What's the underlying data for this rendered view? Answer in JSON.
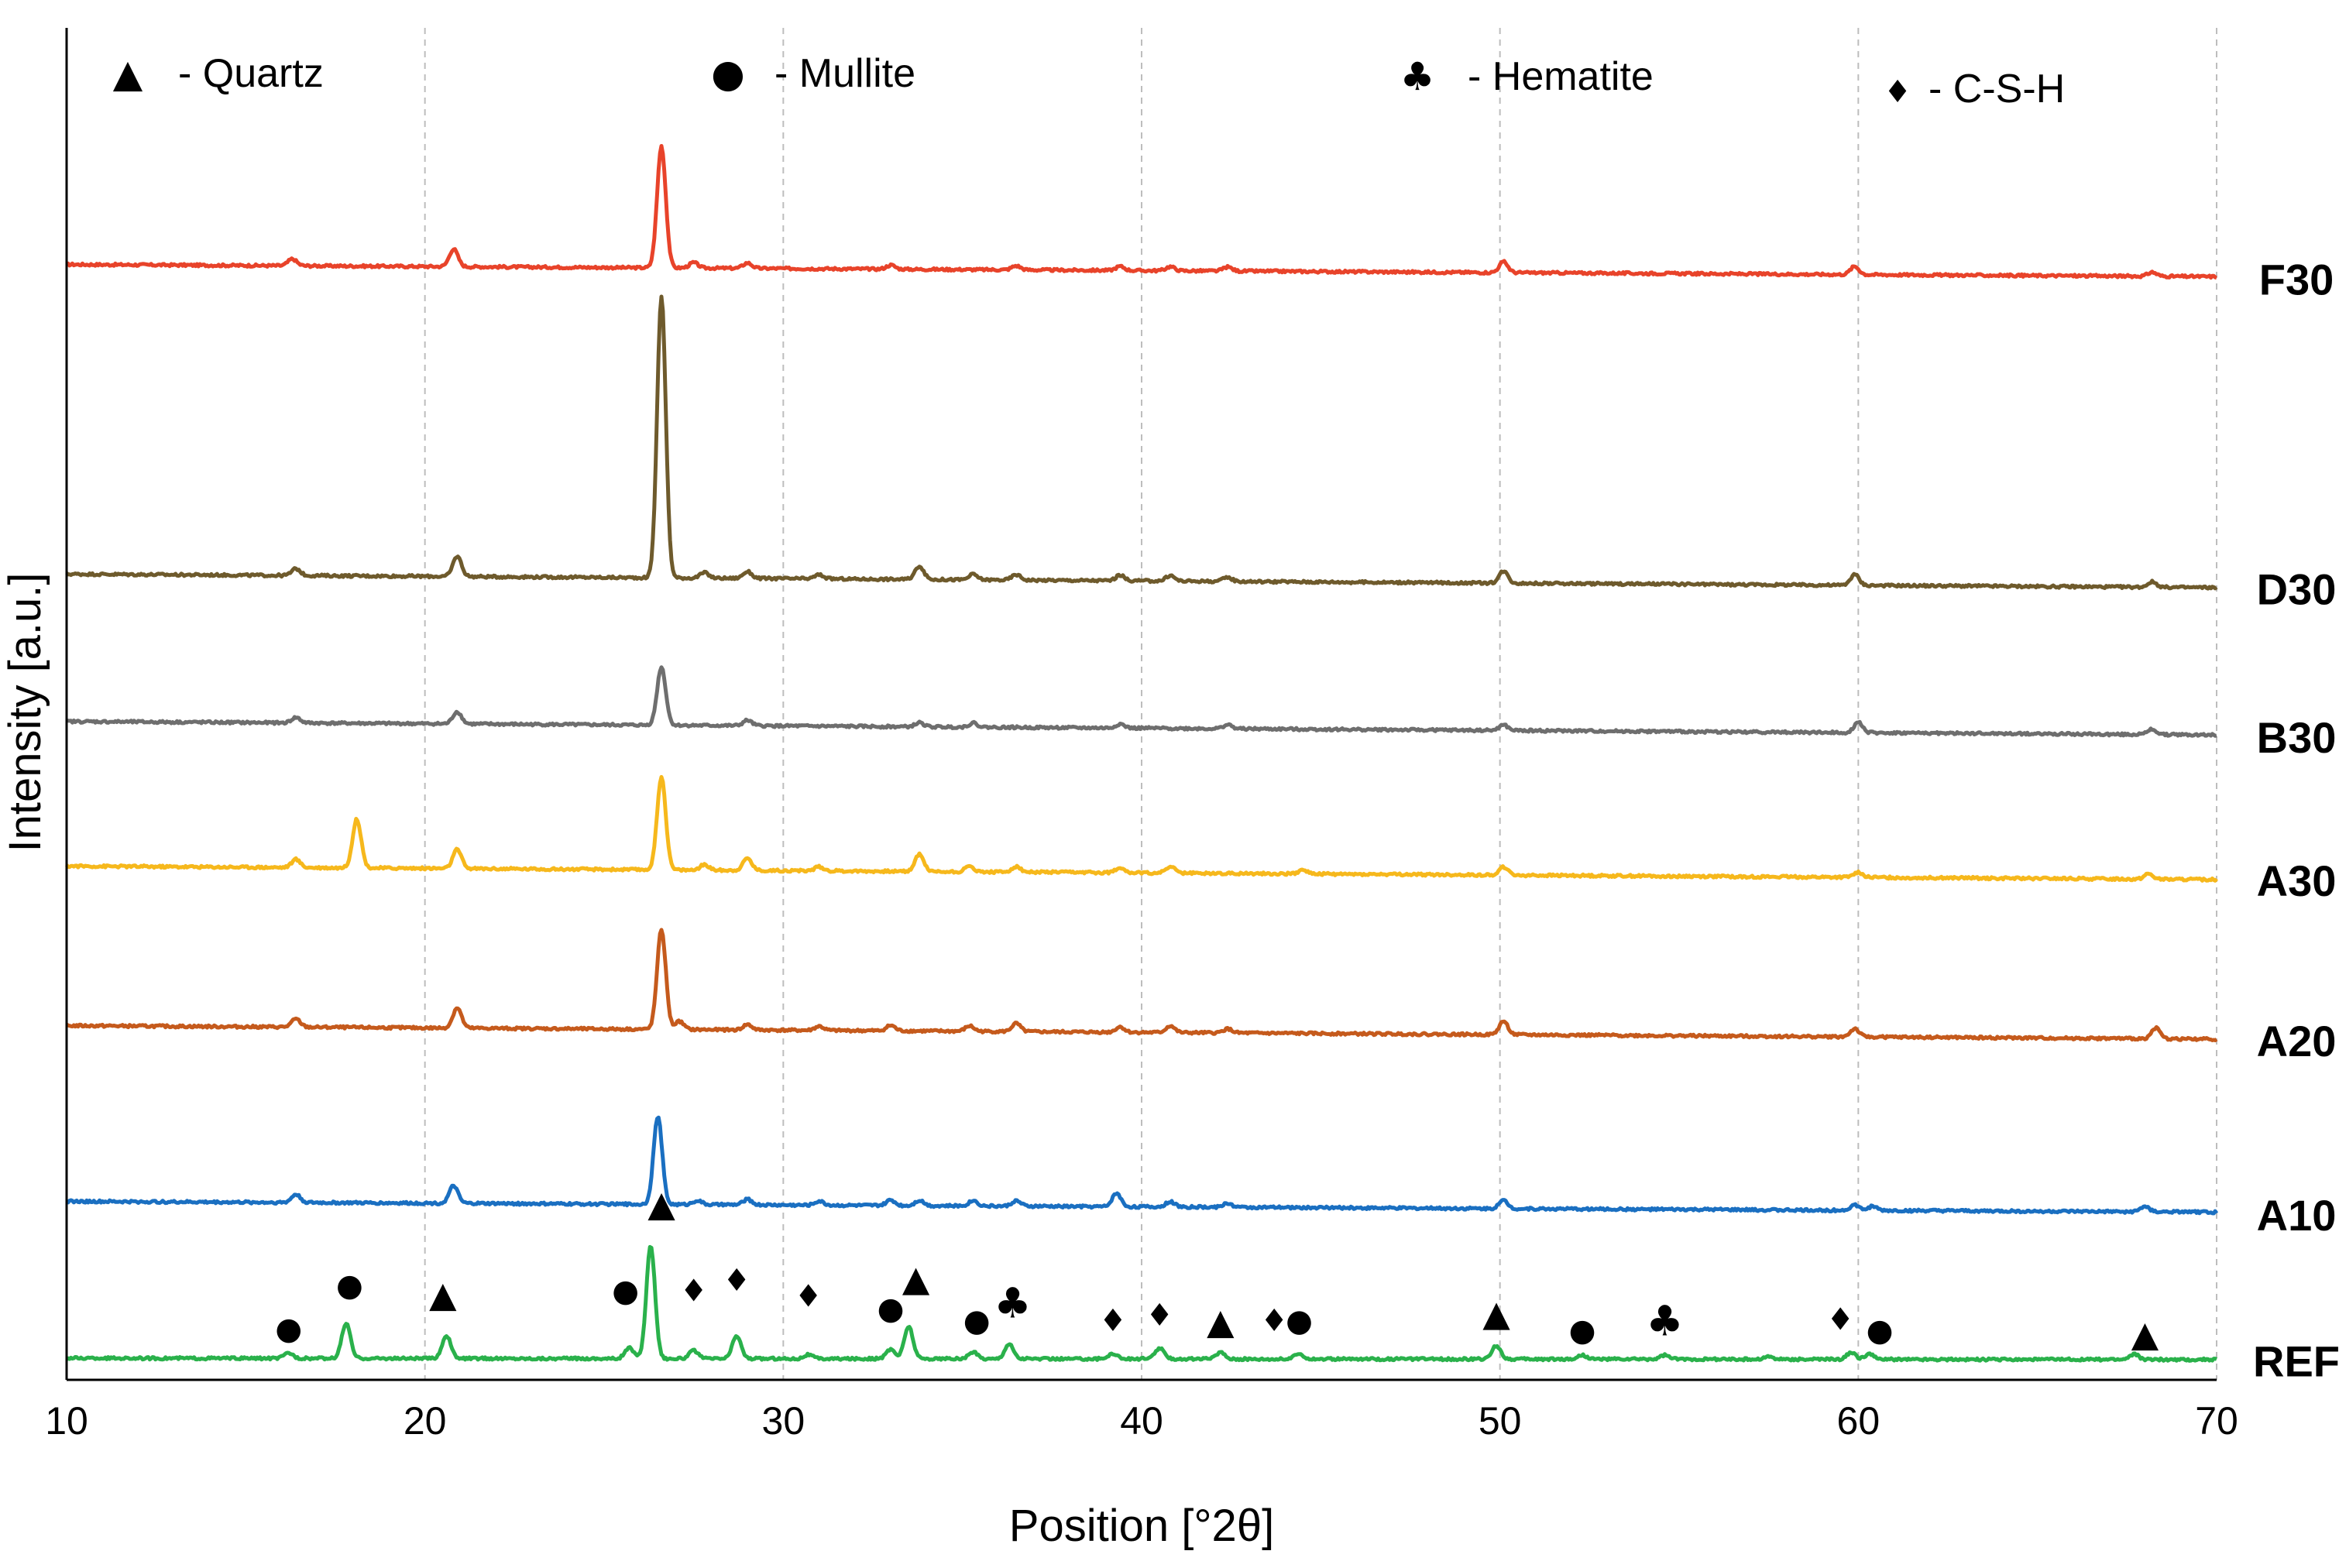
{
  "chart_data": {
    "type": "line",
    "title": "",
    "xlabel": "Position [°2θ]",
    "ylabel": "Intensity [a.u.]",
    "xlim": [
      10,
      70
    ],
    "xticks": [
      10,
      20,
      30,
      40,
      50,
      60,
      70
    ],
    "ylim": [
      0,
      100
    ],
    "grid": "vertical dashed",
    "legend": [
      {
        "glyph": "▲",
        "text": "- Quartz",
        "phase": "quartz"
      },
      {
        "glyph": "●",
        "text": "- Mullite",
        "phase": "mullite"
      },
      {
        "glyph": "♣",
        "text": "- Hematite",
        "phase": "hematite"
      },
      {
        "glyph": "♦",
        "text": "- C-S-H",
        "phase": "csh"
      }
    ],
    "legend_placement": "top, across",
    "series": [
      {
        "name": "F30",
        "color": "#e8432a",
        "baseline": 82.5,
        "drift": -0.9,
        "peaks": [
          [
            16.3,
            0.5
          ],
          [
            20.8,
            1.3
          ],
          [
            26.6,
            9.0
          ],
          [
            27.5,
            0.4
          ],
          [
            29.0,
            0.4
          ],
          [
            33.0,
            0.3
          ],
          [
            36.5,
            0.3
          ],
          [
            39.4,
            0.3
          ],
          [
            40.8,
            0.3
          ],
          [
            42.4,
            0.3
          ],
          [
            50.1,
            0.8
          ],
          [
            59.9,
            0.6
          ],
          [
            68.2,
            0.3
          ]
        ]
      },
      {
        "name": "D30",
        "color": "#6e5a2c",
        "baseline": 59.6,
        "drift": -1.0,
        "peaks": [
          [
            16.4,
            0.5
          ],
          [
            20.9,
            1.5
          ],
          [
            26.6,
            20.8
          ],
          [
            27.8,
            0.4
          ],
          [
            29.0,
            0.5
          ],
          [
            31.0,
            0.3
          ],
          [
            33.8,
            1.0
          ],
          [
            35.3,
            0.4
          ],
          [
            36.5,
            0.4
          ],
          [
            39.4,
            0.4
          ],
          [
            40.8,
            0.4
          ],
          [
            42.4,
            0.3
          ],
          [
            50.1,
            0.9
          ],
          [
            59.9,
            0.8
          ],
          [
            68.2,
            0.4
          ]
        ]
      },
      {
        "name": "B30",
        "color": "#6e6e6e",
        "baseline": 48.7,
        "drift": -1.0,
        "peaks": [
          [
            16.4,
            0.4
          ],
          [
            20.9,
            0.9
          ],
          [
            26.6,
            4.3
          ],
          [
            29.0,
            0.4
          ],
          [
            33.8,
            0.3
          ],
          [
            35.3,
            0.3
          ],
          [
            39.4,
            0.3
          ],
          [
            42.4,
            0.3
          ],
          [
            50.1,
            0.4
          ],
          [
            60.0,
            0.8
          ],
          [
            68.2,
            0.4
          ]
        ]
      },
      {
        "name": "A30",
        "color": "#f6b81c",
        "baseline": 38.0,
        "drift": -1.0,
        "peaks": [
          [
            16.4,
            0.6
          ],
          [
            18.1,
            3.6
          ],
          [
            20.9,
            1.4
          ],
          [
            26.6,
            6.9
          ],
          [
            27.8,
            0.4
          ],
          [
            29.0,
            0.9
          ],
          [
            31.0,
            0.3
          ],
          [
            33.8,
            1.3
          ],
          [
            35.2,
            0.4
          ],
          [
            36.5,
            0.4
          ],
          [
            39.4,
            0.4
          ],
          [
            40.8,
            0.5
          ],
          [
            44.5,
            0.3
          ],
          [
            50.1,
            0.6
          ],
          [
            60.0,
            0.4
          ],
          [
            68.1,
            0.4
          ]
        ]
      },
      {
        "name": "A20",
        "color": "#c55a1c",
        "baseline": 26.2,
        "drift": -1.0,
        "peaks": [
          [
            16.4,
            0.6
          ],
          [
            20.9,
            1.5
          ],
          [
            26.6,
            7.4
          ],
          [
            27.1,
            0.6
          ],
          [
            29.0,
            0.4
          ],
          [
            31.0,
            0.3
          ],
          [
            33.0,
            0.4
          ],
          [
            35.2,
            0.4
          ],
          [
            36.5,
            0.6
          ],
          [
            39.4,
            0.4
          ],
          [
            40.8,
            0.5
          ],
          [
            42.4,
            0.3
          ],
          [
            50.1,
            1.0
          ],
          [
            59.9,
            0.6
          ],
          [
            68.3,
            0.8
          ]
        ]
      },
      {
        "name": "A10",
        "color": "#1a6fc1",
        "baseline": 13.2,
        "drift": -0.8,
        "peaks": [
          [
            16.4,
            0.6
          ],
          [
            20.8,
            1.3
          ],
          [
            26.5,
            6.5
          ],
          [
            27.6,
            0.3
          ],
          [
            29.0,
            0.4
          ],
          [
            31.0,
            0.3
          ],
          [
            33.0,
            0.4
          ],
          [
            33.8,
            0.4
          ],
          [
            35.3,
            0.4
          ],
          [
            36.5,
            0.4
          ],
          [
            39.3,
            1.0
          ],
          [
            40.8,
            0.4
          ],
          [
            42.4,
            0.3
          ],
          [
            50.1,
            0.6
          ],
          [
            59.9,
            0.4
          ],
          [
            60.4,
            0.3
          ],
          [
            68.0,
            0.4
          ]
        ]
      },
      {
        "name": "REF",
        "color": "#2ab14b",
        "baseline": 1.6,
        "drift": -0.1,
        "peaks": [
          [
            16.2,
            0.4
          ],
          [
            17.8,
            2.6
          ],
          [
            20.6,
            1.7
          ],
          [
            25.7,
            0.8
          ],
          [
            26.3,
            8.4
          ],
          [
            27.5,
            0.6
          ],
          [
            28.7,
            1.7
          ],
          [
            30.7,
            0.3
          ],
          [
            33.0,
            0.7
          ],
          [
            33.5,
            2.4
          ],
          [
            35.3,
            0.5
          ],
          [
            36.3,
            1.1
          ],
          [
            39.2,
            0.4
          ],
          [
            40.5,
            0.8
          ],
          [
            42.2,
            0.5
          ],
          [
            44.4,
            0.4
          ],
          [
            49.9,
            1.0
          ],
          [
            52.3,
            0.3
          ],
          [
            54.6,
            0.3
          ],
          [
            57.5,
            0.2
          ],
          [
            59.8,
            0.5
          ],
          [
            60.3,
            0.4
          ],
          [
            67.7,
            0.4
          ]
        ]
      }
    ],
    "phase_markers": [
      {
        "phase": "mullite",
        "x": 16.2,
        "y": 3.0
      },
      {
        "phase": "mullite",
        "x": 17.9,
        "y": 6.2
      },
      {
        "phase": "quartz",
        "x": 20.5,
        "y": 5.4
      },
      {
        "phase": "mullite",
        "x": 25.6,
        "y": 5.8
      },
      {
        "phase": "quartz",
        "x": 26.6,
        "y": 12.1
      },
      {
        "phase": "csh",
        "x": 27.5,
        "y": 5.8
      },
      {
        "phase": "csh",
        "x": 28.7,
        "y": 6.6
      },
      {
        "phase": "csh",
        "x": 30.7,
        "y": 5.4
      },
      {
        "phase": "mullite",
        "x": 33.0,
        "y": 4.5
      },
      {
        "phase": "quartz",
        "x": 33.7,
        "y": 6.6
      },
      {
        "phase": "mullite",
        "x": 35.4,
        "y": 3.6
      },
      {
        "phase": "hematite",
        "x": 36.4,
        "y": 4.6
      },
      {
        "phase": "csh",
        "x": 39.2,
        "y": 3.6
      },
      {
        "phase": "csh",
        "x": 40.5,
        "y": 4.0
      },
      {
        "phase": "quartz",
        "x": 42.2,
        "y": 3.4
      },
      {
        "phase": "csh",
        "x": 43.7,
        "y": 3.6
      },
      {
        "phase": "mullite",
        "x": 44.4,
        "y": 3.6
      },
      {
        "phase": "quartz",
        "x": 49.9,
        "y": 4.0
      },
      {
        "phase": "mullite",
        "x": 52.3,
        "y": 2.9
      },
      {
        "phase": "hematite",
        "x": 54.6,
        "y": 3.3
      },
      {
        "phase": "csh",
        "x": 59.5,
        "y": 3.7
      },
      {
        "phase": "mullite",
        "x": 60.6,
        "y": 2.9
      },
      {
        "phase": "quartz",
        "x": 68.0,
        "y": 2.5
      }
    ]
  }
}
